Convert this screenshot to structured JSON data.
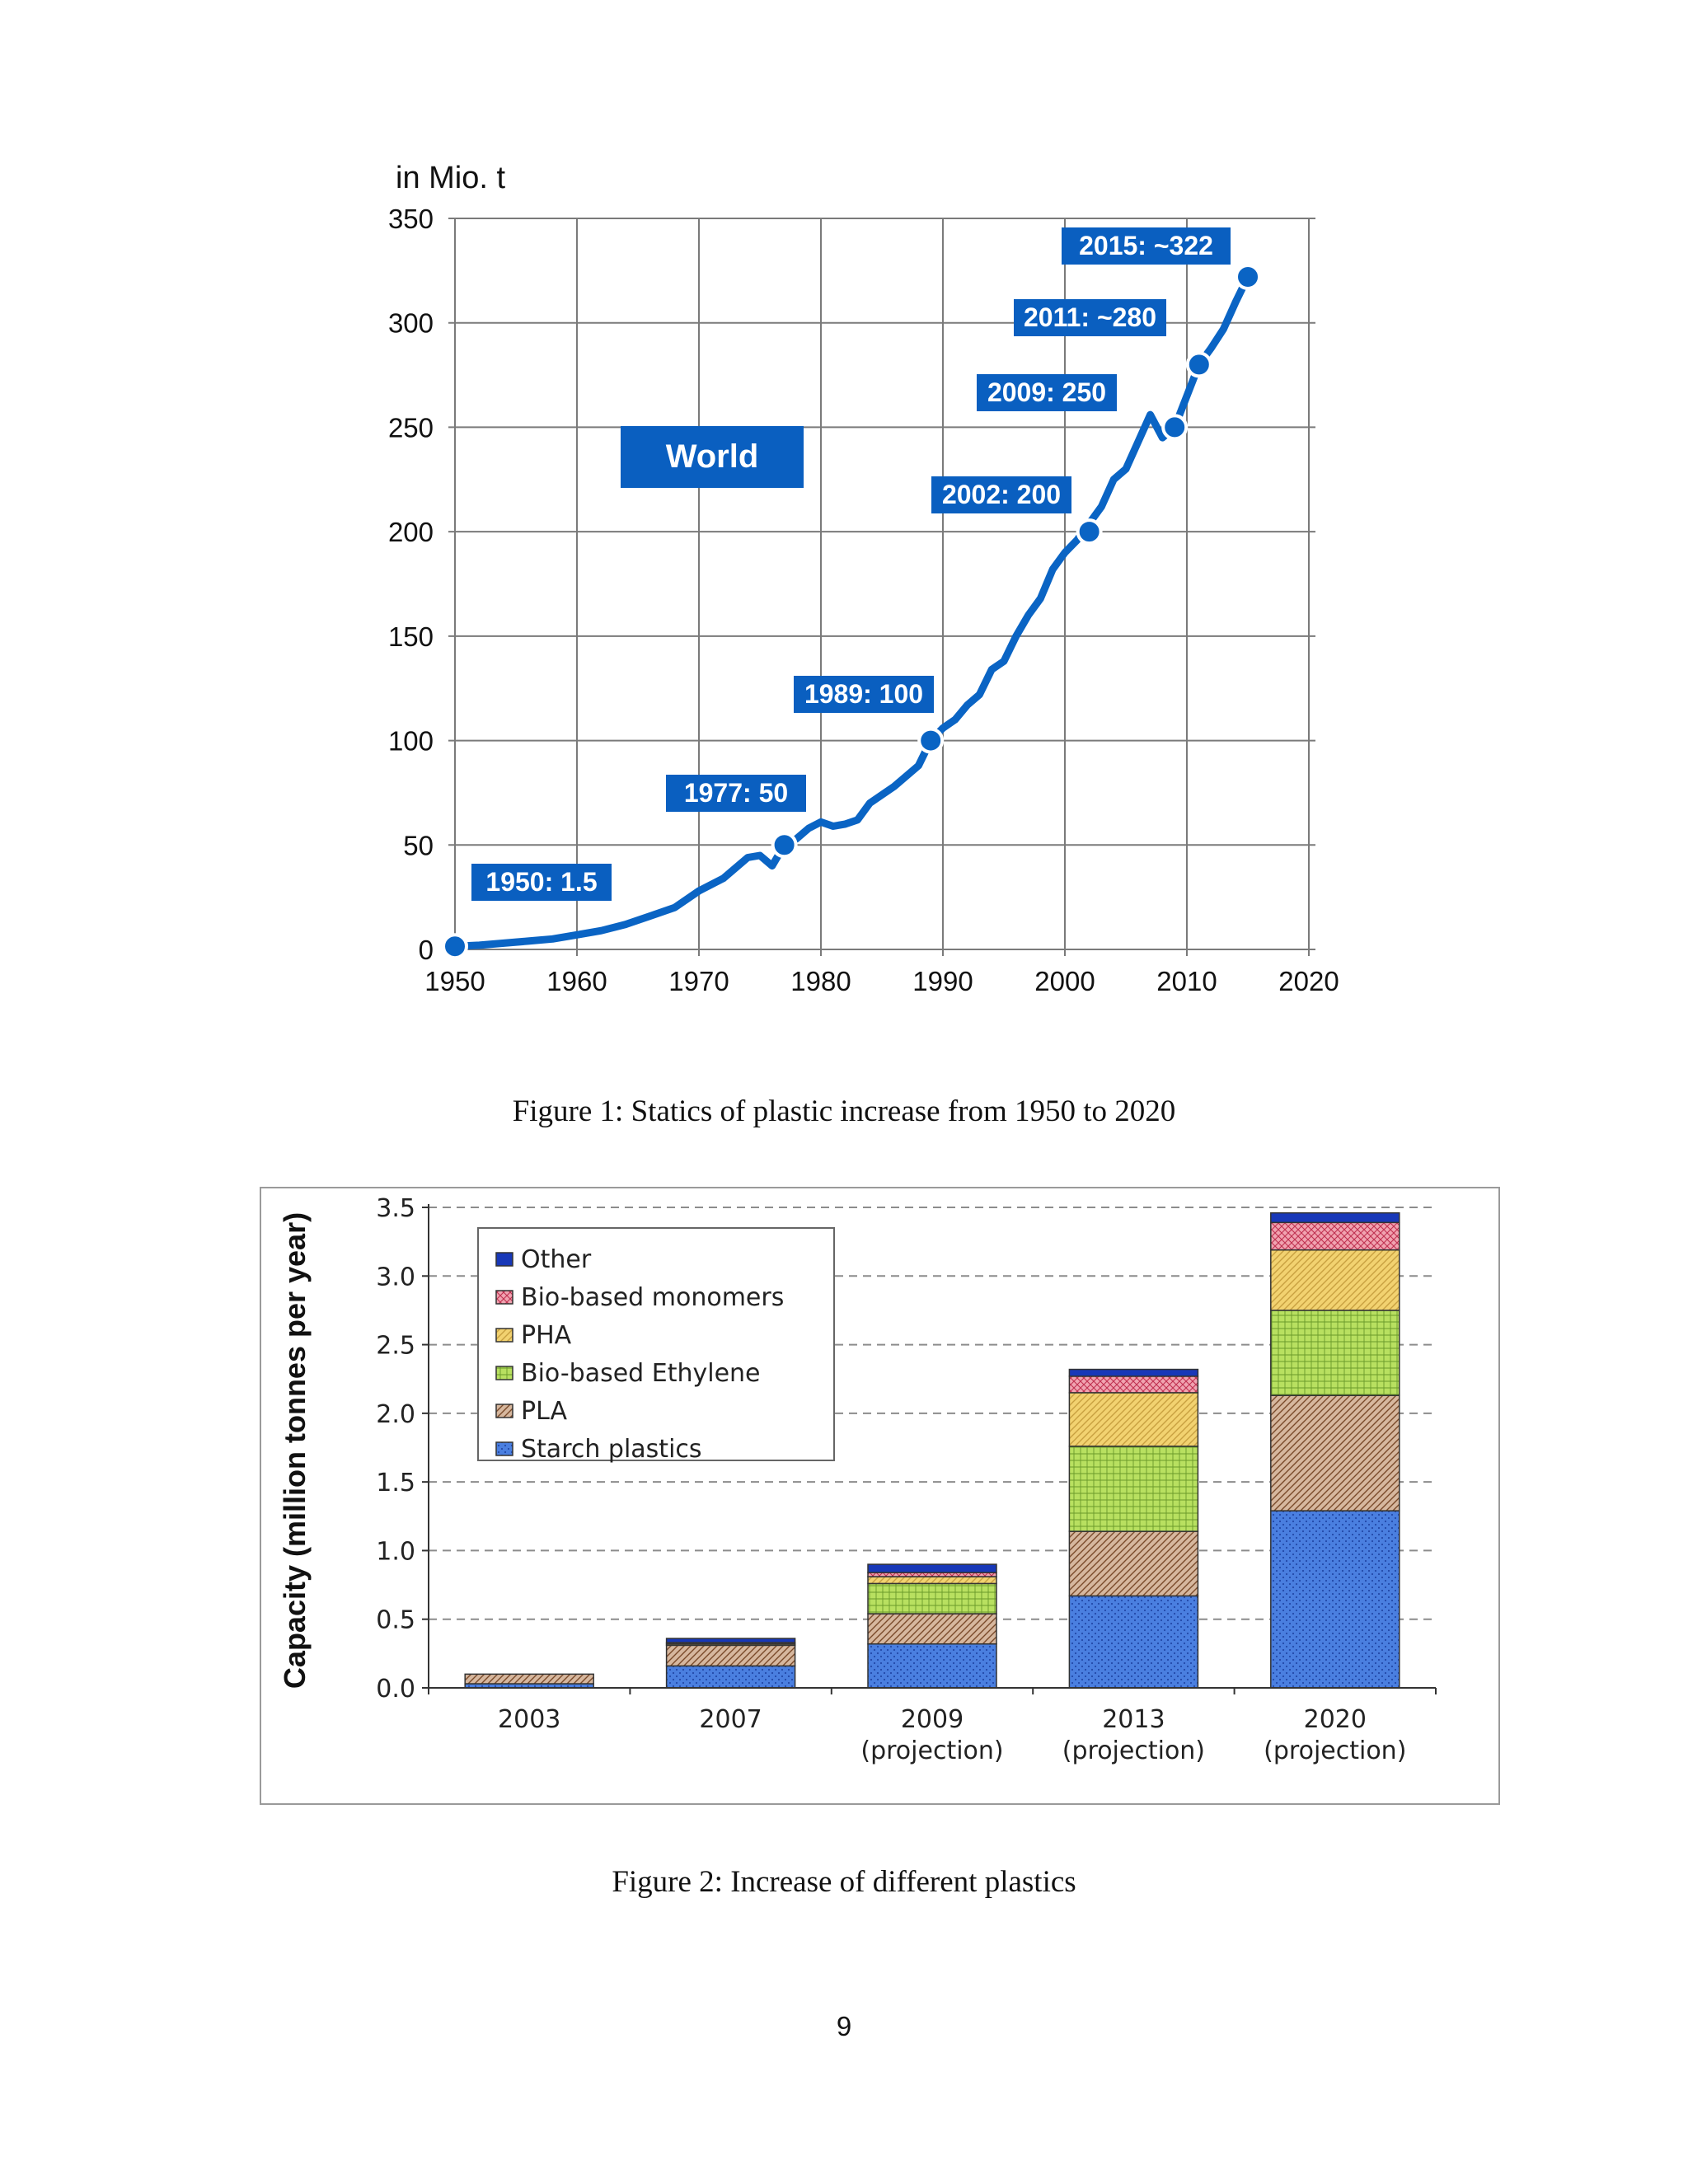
{
  "chart_data": [
    {
      "type": "line",
      "ylabel": "in Mio. t",
      "xlim": [
        1950,
        2020
      ],
      "ylim": [
        0,
        350
      ],
      "x_ticks": [
        1950,
        1960,
        1970,
        1980,
        1990,
        2000,
        2010,
        2020
      ],
      "y_ticks": [
        0,
        50,
        100,
        150,
        200,
        250,
        300,
        350
      ],
      "grid": true,
      "region_label": "World",
      "series": [
        {
          "x": [
            1950,
            1952,
            1954,
            1956,
            1958,
            1960,
            1962,
            1964,
            1966,
            1968,
            1970,
            1972,
            1974,
            1975,
            1976,
            1977,
            1978,
            1979,
            1980,
            1981,
            1982,
            1983,
            1984,
            1986,
            1988,
            1989,
            1990,
            1991,
            1992,
            1993,
            1994,
            1995,
            1996,
            1997,
            1998,
            1999,
            2000,
            2001,
            2002,
            2003,
            2004,
            2005,
            2006,
            2007,
            2008,
            2009,
            2010,
            2011,
            2012,
            2013,
            2014,
            2015
          ],
          "y": [
            1.5,
            2,
            3,
            4,
            5,
            7,
            9,
            12,
            16,
            20,
            28,
            34,
            44,
            45,
            40,
            50,
            53,
            58,
            61,
            59,
            60,
            62,
            70,
            78,
            88,
            100,
            106,
            110,
            117,
            122,
            134,
            138,
            150,
            160,
            168,
            182,
            190,
            196,
            204,
            212,
            225,
            230,
            243,
            256,
            245,
            250,
            265,
            280,
            288,
            297,
            310,
            322
          ]
        }
      ],
      "annotations": [
        {
          "x": 1950,
          "y": 1.5,
          "label": "1950: 1.5"
        },
        {
          "x": 1977,
          "y": 50,
          "label": "1977: 50"
        },
        {
          "x": 1989,
          "y": 100,
          "label": "1989: 100"
        },
        {
          "x": 2002,
          "y": 200,
          "label": "2002: 200"
        },
        {
          "x": 2009,
          "y": 250,
          "label": "2009: 250"
        },
        {
          "x": 2011,
          "y": 280,
          "label": "2011: ~280"
        },
        {
          "x": 2015,
          "y": 322,
          "label": "2015: ~322"
        }
      ],
      "colors": {
        "line": "#0a64c4",
        "label_bg": "#0a5fc0",
        "label_text": "#ffffff",
        "grid": "#7a7a7a"
      }
    },
    {
      "type": "bar",
      "stacked": true,
      "ylabel": "Capacity (million tonnes per year)",
      "ylim": [
        0,
        3.5
      ],
      "y_ticks": [
        "0.0",
        "0.5",
        "1.0",
        "1.5",
        "2.0",
        "2.5",
        "3.0",
        "3.5"
      ],
      "categories": [
        "2003",
        "2007",
        "2009\n(projection)",
        "2013\n(projection)",
        "2020\n(projection)"
      ],
      "series": [
        {
          "name": "Starch plastics",
          "values": [
            0.03,
            0.16,
            0.32,
            0.67,
            1.29
          ],
          "color": "#4a7fe0"
        },
        {
          "name": "PLA",
          "values": [
            0.07,
            0.15,
            0.22,
            0.47,
            0.84
          ],
          "color": "#d6b79e"
        },
        {
          "name": "Bio-based Ethylene",
          "values": [
            0,
            0,
            0.22,
            0.62,
            0.62
          ],
          "color": "#b8e060"
        },
        {
          "name": "PHA",
          "values": [
            0,
            0.01,
            0.05,
            0.39,
            0.44
          ],
          "color": "#f2d270"
        },
        {
          "name": "Bio-based monomers",
          "values": [
            0,
            0.01,
            0.03,
            0.12,
            0.2
          ],
          "color": "#f0a3b0"
        },
        {
          "name": "Other",
          "values": [
            0,
            0.03,
            0.06,
            0.05,
            0.07
          ],
          "color": "#1838b8"
        }
      ],
      "legend_placement": "top-left",
      "grid": "dashed-horizontal"
    }
  ],
  "captions": {
    "figure1": "Figure  1: Statics  of plastic  increase  from  1950 to 2020",
    "figure2": "Figure  2: Increase  of different  plastics"
  },
  "page_number": "9"
}
